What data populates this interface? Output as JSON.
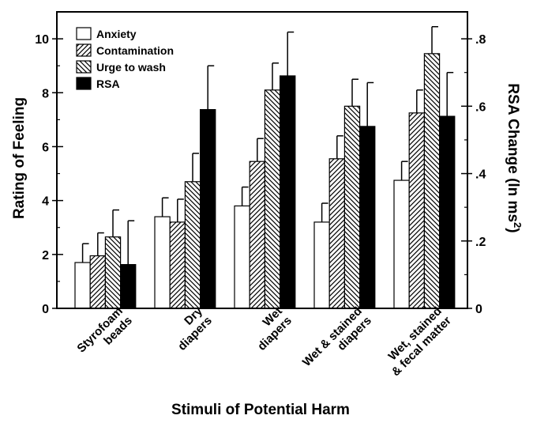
{
  "chart_data": {
    "type": "bar",
    "xlabel": "Stimuli of Potential Harm",
    "ylabel": "Rating of Feeling",
    "y2label": "RSA Change (ln ms",
    "y2label_sup": "2",
    "y2label_close": ")",
    "ylim": [
      0,
      11
    ],
    "y2lim": [
      0,
      0.88
    ],
    "yticks": [
      0,
      2,
      4,
      6,
      8,
      10
    ],
    "yticklabels": [
      "0",
      "2",
      "4",
      "6",
      "8",
      "10"
    ],
    "y2ticks": [
      0,
      0.2,
      0.4,
      0.6,
      0.8
    ],
    "y2ticklabels": [
      "0",
      ".2",
      ".4",
      ".6",
      ".8"
    ],
    "categories": [
      [
        "Styrofoam",
        "beads"
      ],
      [
        "Dry",
        "diapers"
      ],
      [
        "Wet",
        "diapers"
      ],
      [
        "Wet & stained",
        "diapers"
      ],
      [
        "Wet, stained",
        "& fecal matter"
      ]
    ],
    "legend_position": "top-left",
    "series": [
      {
        "name": "Anxiety",
        "axis": "left",
        "pattern": "white",
        "values": [
          1.7,
          3.4,
          3.8,
          3.2,
          4.75
        ],
        "errors": [
          0.7,
          0.7,
          0.7,
          0.7,
          0.7
        ]
      },
      {
        "name": "Contamination",
        "axis": "left",
        "pattern": "diag-right",
        "values": [
          1.95,
          3.2,
          5.45,
          5.55,
          7.25
        ],
        "errors": [
          0.85,
          0.85,
          0.85,
          0.85,
          0.85
        ]
      },
      {
        "name": "Urge to wash",
        "axis": "left",
        "pattern": "diag-left",
        "values": [
          2.65,
          4.7,
          8.1,
          7.5,
          9.45
        ],
        "errors": [
          1.0,
          1.05,
          1.0,
          1.0,
          1.0
        ]
      },
      {
        "name": "RSA",
        "axis": "right",
        "pattern": "black",
        "values": [
          0.13,
          0.59,
          0.69,
          0.54,
          0.57
        ],
        "errors": [
          0.13,
          0.13,
          0.13,
          0.13,
          0.13
        ]
      }
    ]
  }
}
